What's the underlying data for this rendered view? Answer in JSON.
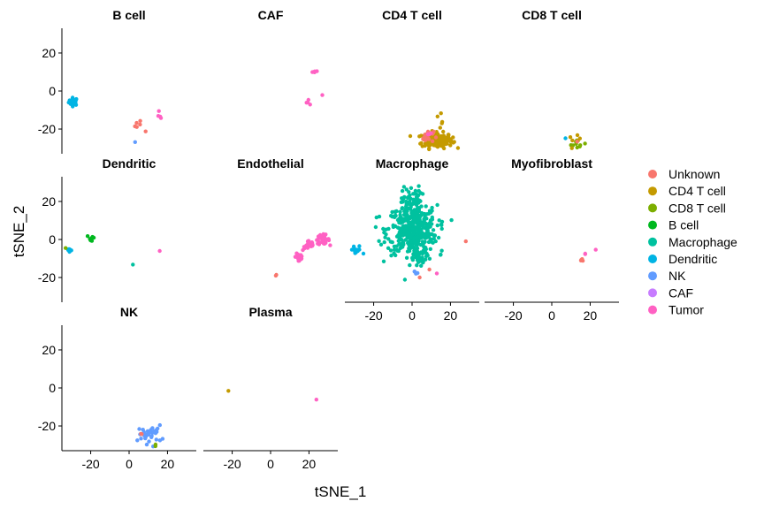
{
  "chart_data": {
    "type": "scatter",
    "title": "",
    "xlabel": "tSNE_1",
    "ylabel": "tSNE_2",
    "xlim": [
      -35,
      35
    ],
    "ylim": [
      -33,
      33
    ],
    "x_ticks": [
      -20,
      0,
      20
    ],
    "y_ticks": [
      20,
      0,
      -20
    ],
    "grid": false,
    "legend_placement": "right",
    "legend": [
      {
        "name": "Unknown",
        "color": "#F8766D"
      },
      {
        "name": "CD4 T cell",
        "color": "#C49A00"
      },
      {
        "name": "CD8 T cell",
        "color": "#7CAE00"
      },
      {
        "name": "B cell",
        "color": "#00B81F"
      },
      {
        "name": "Macrophage",
        "color": "#00C19F"
      },
      {
        "name": "Dendritic",
        "color": "#00B4E4"
      },
      {
        "name": "NK",
        "color": "#619CFF"
      },
      {
        "name": "CAF",
        "color": "#C77CFF"
      },
      {
        "name": "Tumor",
        "color": "#FF61C3"
      }
    ],
    "facets": [
      {
        "title": "B cell",
        "clusters": [
          {
            "group": "Dendritic",
            "cx": -29,
            "cy": -5.5,
            "sx": 1.2,
            "sy": 1.0,
            "n": 30
          },
          {
            "group": "Unknown",
            "cx": 5,
            "cy": -18,
            "sx": 1.2,
            "sy": 1.5,
            "n": 5
          },
          {
            "group": "Unknown",
            "cx": 9,
            "cy": -21,
            "sx": 0.4,
            "sy": 0.3,
            "n": 1
          },
          {
            "group": "Tumor",
            "cx": 16,
            "cy": -13,
            "sx": 0.4,
            "sy": 1.6,
            "n": 4
          },
          {
            "group": "NK",
            "cx": 3,
            "cy": -27,
            "sx": 0.1,
            "sy": 0.1,
            "n": 1
          }
        ]
      },
      {
        "title": "CAF",
        "clusters": [
          {
            "group": "Tumor",
            "cx": 23,
            "cy": 10,
            "sx": 0.7,
            "sy": 0.3,
            "n": 5
          },
          {
            "group": "Tumor",
            "cx": 20,
            "cy": -5.5,
            "sx": 0.8,
            "sy": 0.8,
            "n": 4
          },
          {
            "group": "Tumor",
            "cx": 27,
            "cy": -2,
            "sx": 0.1,
            "sy": 0.1,
            "n": 1
          }
        ]
      },
      {
        "title": "CD4 T cell",
        "clusters": [
          {
            "group": "CD4 T cell",
            "cx": 13,
            "cy": -26,
            "sx": 4.0,
            "sy": 2.0,
            "n": 170
          },
          {
            "group": "Unknown",
            "cx": 8,
            "cy": -24,
            "sx": 1.6,
            "sy": 1.5,
            "n": 20
          },
          {
            "group": "CD4 T cell",
            "cx": 15,
            "cy": -14,
            "sx": 0.6,
            "sy": 2.5,
            "n": 5
          },
          {
            "group": "Tumor",
            "cx": 9,
            "cy": -22,
            "sx": 0.8,
            "sy": 0.8,
            "n": 3
          }
        ]
      },
      {
        "title": "CD8 T cell",
        "clusters": [
          {
            "group": "CD8 T cell",
            "cx": 14,
            "cy": -28,
            "sx": 2.0,
            "sy": 1.2,
            "n": 10
          },
          {
            "group": "CD4 T cell",
            "cx": 12,
            "cy": -26,
            "sx": 1.5,
            "sy": 1.2,
            "n": 6
          },
          {
            "group": "Dendritic",
            "cx": 7,
            "cy": -25,
            "sx": 0.2,
            "sy": 0.2,
            "n": 1
          },
          {
            "group": "Unknown",
            "cx": 13,
            "cy": -27,
            "sx": 0.5,
            "sy": 0.5,
            "n": 1
          }
        ]
      },
      {
        "title": "Dendritic",
        "clusters": [
          {
            "group": "Dendritic",
            "cx": -31,
            "cy": -5.5,
            "sx": 0.7,
            "sy": 0.8,
            "n": 8
          },
          {
            "group": "B cell",
            "cx": -19.5,
            "cy": 0.5,
            "sx": 1.2,
            "sy": 1.0,
            "n": 8
          },
          {
            "group": "Macrophage",
            "cx": 2,
            "cy": -13,
            "sx": 0.1,
            "sy": 0.1,
            "n": 1
          },
          {
            "group": "Tumor",
            "cx": 16,
            "cy": -6,
            "sx": 0.1,
            "sy": 0.1,
            "n": 1
          },
          {
            "group": "CD8 T cell",
            "cx": -33,
            "cy": -4,
            "sx": 0.2,
            "sy": 0.2,
            "n": 1
          }
        ]
      },
      {
        "title": "Endothelial",
        "clusters": [
          {
            "group": "Tumor",
            "cx": 27,
            "cy": 0,
            "sx": 1.8,
            "sy": 1.2,
            "n": 40
          },
          {
            "group": "Tumor",
            "cx": 20,
            "cy": -3,
            "sx": 1.6,
            "sy": 1.4,
            "n": 20
          },
          {
            "group": "Tumor",
            "cx": 15,
            "cy": -9,
            "sx": 1.0,
            "sy": 2.0,
            "n": 16
          },
          {
            "group": "Unknown",
            "cx": 3,
            "cy": -18.5,
            "sx": 0.3,
            "sy": 0.5,
            "n": 2
          }
        ]
      },
      {
        "title": "Macrophage",
        "clusters": [
          {
            "group": "Macrophage",
            "cx": 0,
            "cy": 5,
            "sx": 6.5,
            "sy": 6.5,
            "n": 420
          },
          {
            "group": "Macrophage",
            "cx": 0,
            "cy": 20,
            "sx": 2.5,
            "sy": 4.0,
            "n": 60
          },
          {
            "group": "Macrophage",
            "cx": 4,
            "cy": -10,
            "sx": 3.0,
            "sy": 2.5,
            "n": 40
          },
          {
            "group": "Dendritic",
            "cx": -29,
            "cy": -6,
            "sx": 1.6,
            "sy": 1.5,
            "n": 12
          },
          {
            "group": "NK",
            "cx": 2,
            "cy": -17,
            "sx": 0.8,
            "sy": 0.6,
            "n": 4
          },
          {
            "group": "Unknown",
            "cx": 28,
            "cy": -1,
            "sx": 0.1,
            "sy": 0.1,
            "n": 1
          },
          {
            "group": "Unknown",
            "cx": 9,
            "cy": -16,
            "sx": 0.2,
            "sy": 0.2,
            "n": 1
          },
          {
            "group": "Unknown",
            "cx": 4,
            "cy": -20,
            "sx": 0.1,
            "sy": 0.1,
            "n": 1
          },
          {
            "group": "Tumor",
            "cx": 13,
            "cy": -18,
            "sx": 0.2,
            "sy": 0.2,
            "n": 1
          },
          {
            "group": "Macrophage",
            "cx": 15,
            "cy": -8,
            "sx": 0.4,
            "sy": 0.6,
            "n": 2
          }
        ]
      },
      {
        "title": "Myofibroblast",
        "clusters": [
          {
            "group": "Unknown",
            "cx": 16,
            "cy": -10,
            "sx": 0.8,
            "sy": 1.2,
            "n": 4
          },
          {
            "group": "Tumor",
            "cx": 23,
            "cy": -5.5,
            "sx": 0.1,
            "sy": 0.1,
            "n": 1
          },
          {
            "group": "Tumor",
            "cx": 17,
            "cy": -7,
            "sx": 0.3,
            "sy": 0.5,
            "n": 2
          }
        ]
      },
      {
        "title": "NK",
        "clusters": [
          {
            "group": "NK",
            "cx": 11,
            "cy": -24.5,
            "sx": 3.0,
            "sy": 2.4,
            "n": 32
          },
          {
            "group": "Unknown",
            "cx": 6,
            "cy": -24,
            "sx": 0.4,
            "sy": 0.4,
            "n": 2
          },
          {
            "group": "CD8 T cell",
            "cx": 14,
            "cy": -30,
            "sx": 0.4,
            "sy": 0.3,
            "n": 2
          }
        ]
      },
      {
        "title": "Plasma",
        "clusters": [
          {
            "group": "CD4 T cell",
            "cx": -22,
            "cy": -1.5,
            "sx": 0.1,
            "sy": 0.1,
            "n": 1
          },
          {
            "group": "Tumor",
            "cx": 24,
            "cy": -6,
            "sx": 0.1,
            "sy": 0.1,
            "n": 1
          }
        ]
      }
    ]
  }
}
